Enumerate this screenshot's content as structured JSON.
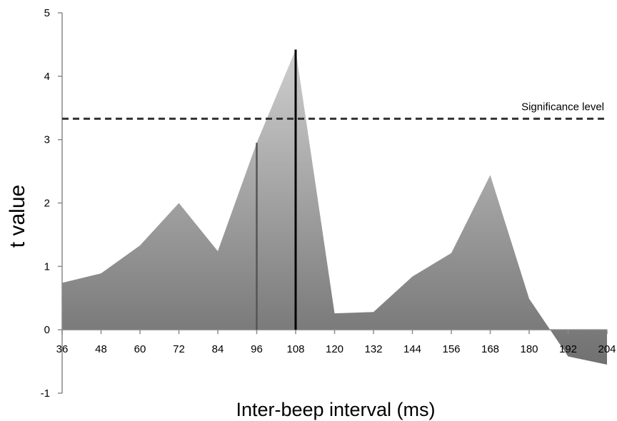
{
  "chart_data": {
    "type": "area",
    "title": "",
    "xlabel": "Inter-beep interval (ms)",
    "ylabel": "t value",
    "xlim": [
      36,
      204
    ],
    "ylim": [
      -1,
      5
    ],
    "x_ticks": [
      "36",
      "48",
      "60",
      "72",
      "84",
      "96",
      "108",
      "120",
      "132",
      "144",
      "156",
      "168",
      "180",
      "192",
      "204"
    ],
    "y_ticks": [
      "-1",
      "0",
      "1",
      "2",
      "3",
      "4",
      "5"
    ],
    "x": [
      36,
      48,
      60,
      72,
      84,
      96,
      108,
      120,
      132,
      144,
      156,
      168,
      180,
      192,
      204
    ],
    "values": [
      0.74,
      0.89,
      1.33,
      2.0,
      1.24,
      2.95,
      4.42,
      0.26,
      0.28,
      0.84,
      1.21,
      2.44,
      0.49,
      -0.42,
      -0.55
    ],
    "reference_line": {
      "label": "Significance level",
      "value": 3.33,
      "style": "dashed"
    },
    "markers": [
      {
        "x": 96,
        "value": 2.95,
        "color": "#555555"
      },
      {
        "x": 108,
        "value": 4.42,
        "color": "#000000"
      }
    ],
    "colors": {
      "area_top": "#cfcfcf",
      "area_bottom": "#707070",
      "axis": "#8a8a8a"
    },
    "grid": false,
    "legend": "none"
  }
}
